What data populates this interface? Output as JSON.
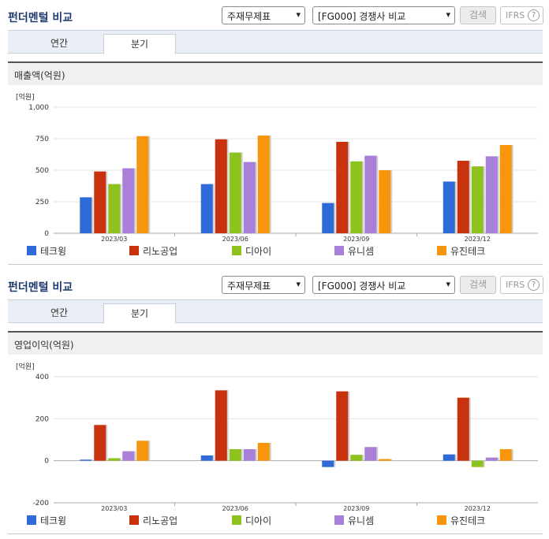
{
  "page": {
    "title": "펀더멘털 비교",
    "select_type": "주재무제표",
    "select_peer": "[FG000] 경쟁사 비교",
    "search_button": "검색",
    "ifrs_button": "IFRS",
    "help_glyph": "?",
    "caret_glyph": "▾",
    "tabs": [
      "연간",
      "분기"
    ],
    "active_tab": "분기"
  },
  "colors": {
    "title": "#1f3a6e",
    "series": [
      "#2f6bd8",
      "#c8320e",
      "#8dc21f",
      "#a87fd9",
      "#f7960d"
    ]
  },
  "chart_data": [
    {
      "type": "bar",
      "title": "매출액(억원)",
      "ylabel": "[억원]",
      "categories": [
        "2023/03",
        "2023/06",
        "2023/09",
        "2023/12"
      ],
      "ylim": [
        0,
        1000
      ],
      "yticks": [
        0,
        250,
        500,
        750,
        1000
      ],
      "ytick_labels": [
        "0",
        "250",
        "500",
        "750",
        "1,000"
      ],
      "grid": true,
      "legend_position": "bottom",
      "series": [
        {
          "name": "테크윙",
          "values": [
            285,
            390,
            240,
            410
          ]
        },
        {
          "name": "리노공업",
          "values": [
            490,
            745,
            725,
            575
          ]
        },
        {
          "name": "디아이",
          "values": [
            390,
            640,
            570,
            530
          ]
        },
        {
          "name": "유니셈",
          "values": [
            515,
            565,
            615,
            610
          ]
        },
        {
          "name": "유진테크",
          "values": [
            770,
            775,
            500,
            700
          ]
        }
      ]
    },
    {
      "type": "bar",
      "title": "영업이익(억원)",
      "ylabel": "[억원]",
      "categories": [
        "2023/03",
        "2023/06",
        "2023/09",
        "2023/12"
      ],
      "ylim": [
        -200,
        400
      ],
      "yticks": [
        -200,
        0,
        200,
        400
      ],
      "ytick_labels": [
        "-200",
        "0",
        "200",
        "400"
      ],
      "grid": true,
      "legend_position": "bottom",
      "series": [
        {
          "name": "테크윙",
          "values": [
            5,
            25,
            -30,
            30
          ]
        },
        {
          "name": "리노공업",
          "values": [
            170,
            335,
            330,
            300
          ]
        },
        {
          "name": "디아이",
          "values": [
            12,
            55,
            28,
            -30
          ]
        },
        {
          "name": "유니셈",
          "values": [
            45,
            55,
            65,
            15
          ]
        },
        {
          "name": "유진테크",
          "values": [
            95,
            85,
            8,
            55
          ]
        }
      ]
    }
  ]
}
